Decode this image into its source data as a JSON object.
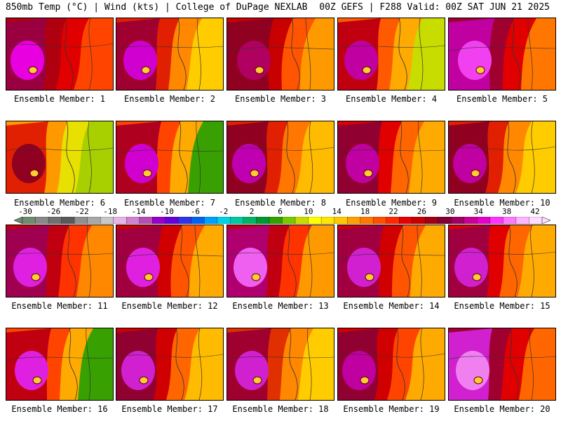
{
  "header": {
    "left": "850mb Temp (°C) | Wind (kts) | College of DuPage NEXLAB",
    "right": "00Z GEFS | F288 Valid: 00Z SAT JUN 21 2025"
  },
  "panels": [
    {
      "label": "Ensemble Member: 1",
      "palette": [
        "#ff4400",
        "#e00000",
        "#b00010",
        "#9a0040",
        "#e800e0"
      ]
    },
    {
      "label": "Ensemble Member: 2",
      "palette": [
        "#ffcc00",
        "#ff8800",
        "#e02000",
        "#a00030",
        "#d000d0"
      ]
    },
    {
      "label": "Ensemble Member: 3",
      "palette": [
        "#ff9900",
        "#ff5500",
        "#c80000",
        "#900020",
        "#b00060"
      ]
    },
    {
      "label": "Ensemble Member: 4",
      "palette": [
        "#c8dc00",
        "#ffaa00",
        "#ff5a00",
        "#c00010",
        "#c000a0"
      ]
    },
    {
      "label": "Ensemble Member: 5",
      "palette": [
        "#ff7700",
        "#e00000",
        "#a00030",
        "#c000a0",
        "#f040f0"
      ]
    },
    {
      "label": "Ensemble Member: 6",
      "palette": [
        "#a8d000",
        "#e8e000",
        "#ff9900",
        "#e02000",
        "#900020"
      ]
    },
    {
      "label": "Ensemble Member: 7",
      "palette": [
        "#38a000",
        "#ffaa00",
        "#ff4400",
        "#b00020",
        "#d000d0"
      ]
    },
    {
      "label": "Ensemble Member: 8",
      "palette": [
        "#ffbb00",
        "#ff7700",
        "#e02000",
        "#900020",
        "#c000b0"
      ]
    },
    {
      "label": "Ensemble Member: 9",
      "palette": [
        "#ffaa00",
        "#ff6600",
        "#e00000",
        "#900030",
        "#c000a0"
      ]
    },
    {
      "label": "Ensemble Member: 10",
      "palette": [
        "#ffcc00",
        "#ff8800",
        "#e02000",
        "#900020",
        "#c000a0"
      ]
    },
    {
      "label": "Ensemble Member: 11",
      "palette": [
        "#ff8800",
        "#ff3300",
        "#c00010",
        "#a00050",
        "#e020e0"
      ]
    },
    {
      "label": "Ensemble Member: 12",
      "palette": [
        "#ffaa00",
        "#ff5500",
        "#d00000",
        "#a00040",
        "#e020e0"
      ]
    },
    {
      "label": "Ensemble Member: 13",
      "palette": [
        "#ff9900",
        "#ff3300",
        "#c00010",
        "#b00070",
        "#f060f0"
      ]
    },
    {
      "label": "Ensemble Member: 14",
      "palette": [
        "#ffaa00",
        "#ff5500",
        "#d00000",
        "#a00040",
        "#d020d0"
      ]
    },
    {
      "label": "Ensemble Member: 15",
      "palette": [
        "#ffaa00",
        "#ff6600",
        "#e00000",
        "#a00040",
        "#d020d0"
      ]
    },
    {
      "label": "Ensemble Member: 16",
      "palette": [
        "#38a000",
        "#ffaa00",
        "#ff4400",
        "#c00010",
        "#e020e0"
      ]
    },
    {
      "label": "Ensemble Member: 17",
      "palette": [
        "#ffbb00",
        "#ff6600",
        "#d00000",
        "#900030",
        "#d020d0"
      ]
    },
    {
      "label": "Ensemble Member: 18",
      "palette": [
        "#ffcc00",
        "#ff8800",
        "#e03000",
        "#a00030",
        "#d020d0"
      ]
    },
    {
      "label": "Ensemble Member: 19",
      "palette": [
        "#ffaa00",
        "#ff4400",
        "#d00000",
        "#900030",
        "#c000a0"
      ]
    },
    {
      "label": "Ensemble Member: 20",
      "palette": [
        "#ff6600",
        "#e00000",
        "#a00030",
        "#d020d0",
        "#f080f0"
      ]
    }
  ],
  "colorbar": {
    "ticks": [
      "-30",
      "-26",
      "-22",
      "-18",
      "-14",
      "-10",
      "-6",
      "-2",
      "2",
      "6",
      "10",
      "14",
      "18",
      "22",
      "26",
      "30",
      "34",
      "38",
      "42"
    ],
    "colors": [
      "#6e8c6e",
      "#888888",
      "#707070",
      "#5a5a5a",
      "#909090",
      "#a8a8a8",
      "#c8c8c8",
      "#e6b4e6",
      "#d282d2",
      "#b450b4",
      "#9600c8",
      "#6400dc",
      "#3232e6",
      "#0064f0",
      "#00a0ff",
      "#00d2e6",
      "#00c8a0",
      "#00b464",
      "#009632",
      "#32a000",
      "#78c800",
      "#c8dc00",
      "#ffff00",
      "#ffe600",
      "#ffc800",
      "#ffa000",
      "#ff7800",
      "#ff5000",
      "#ff2800",
      "#e60000",
      "#c80000",
      "#a00014",
      "#820032",
      "#a00064",
      "#c80096",
      "#e600c8",
      "#ff32ff",
      "#ff78ff",
      "#ffb4ff",
      "#ffdcff"
    ]
  }
}
